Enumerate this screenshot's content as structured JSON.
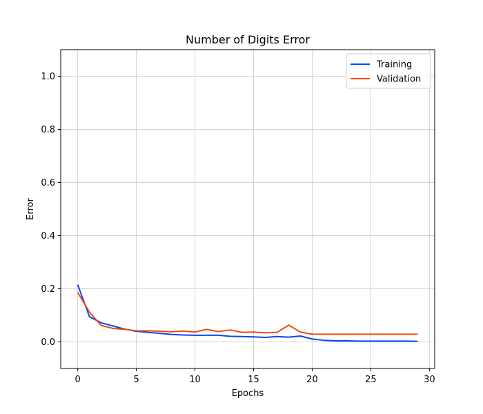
{
  "chart_data": {
    "type": "line",
    "title": "Number of Digits Error",
    "xlabel": "Epochs",
    "ylabel": "Error",
    "xlim": [
      -1.45,
      30.45
    ],
    "ylim": [
      -0.1,
      1.1
    ],
    "xticks": [
      0,
      5,
      10,
      15,
      20,
      25,
      30
    ],
    "yticks": [
      0.0,
      0.2,
      0.4,
      0.6,
      0.8,
      1.0
    ],
    "xtick_labels": [
      "0",
      "5",
      "10",
      "15",
      "20",
      "25",
      "30"
    ],
    "ytick_labels": [
      "0.0",
      "0.2",
      "0.4",
      "0.6",
      "0.8",
      "1.0"
    ],
    "grid": true,
    "legend_position": "top-right",
    "x": [
      0,
      1,
      2,
      3,
      4,
      5,
      6,
      7,
      8,
      9,
      10,
      11,
      12,
      13,
      14,
      15,
      16,
      17,
      18,
      19,
      20,
      21,
      22,
      23,
      24,
      25,
      26,
      27,
      28,
      29
    ],
    "series": [
      {
        "name": "Training",
        "color": "#0a45f5",
        "values": [
          0.215,
          0.095,
          0.072,
          0.06,
          0.048,
          0.04,
          0.036,
          0.032,
          0.028,
          0.026,
          0.025,
          0.025,
          0.025,
          0.021,
          0.02,
          0.019,
          0.017,
          0.02,
          0.018,
          0.022,
          0.011,
          0.006,
          0.004,
          0.004,
          0.003,
          0.003,
          0.003,
          0.003,
          0.003,
          0.002
        ]
      },
      {
        "name": "Validation",
        "color": "#f04a10",
        "values": [
          0.186,
          0.112,
          0.062,
          0.051,
          0.047,
          0.042,
          0.042,
          0.04,
          0.038,
          0.041,
          0.037,
          0.047,
          0.039,
          0.045,
          0.036,
          0.037,
          0.034,
          0.036,
          0.063,
          0.037,
          0.029,
          0.029,
          0.029,
          0.029,
          0.029,
          0.029,
          0.029,
          0.029,
          0.029,
          0.029
        ]
      }
    ]
  }
}
